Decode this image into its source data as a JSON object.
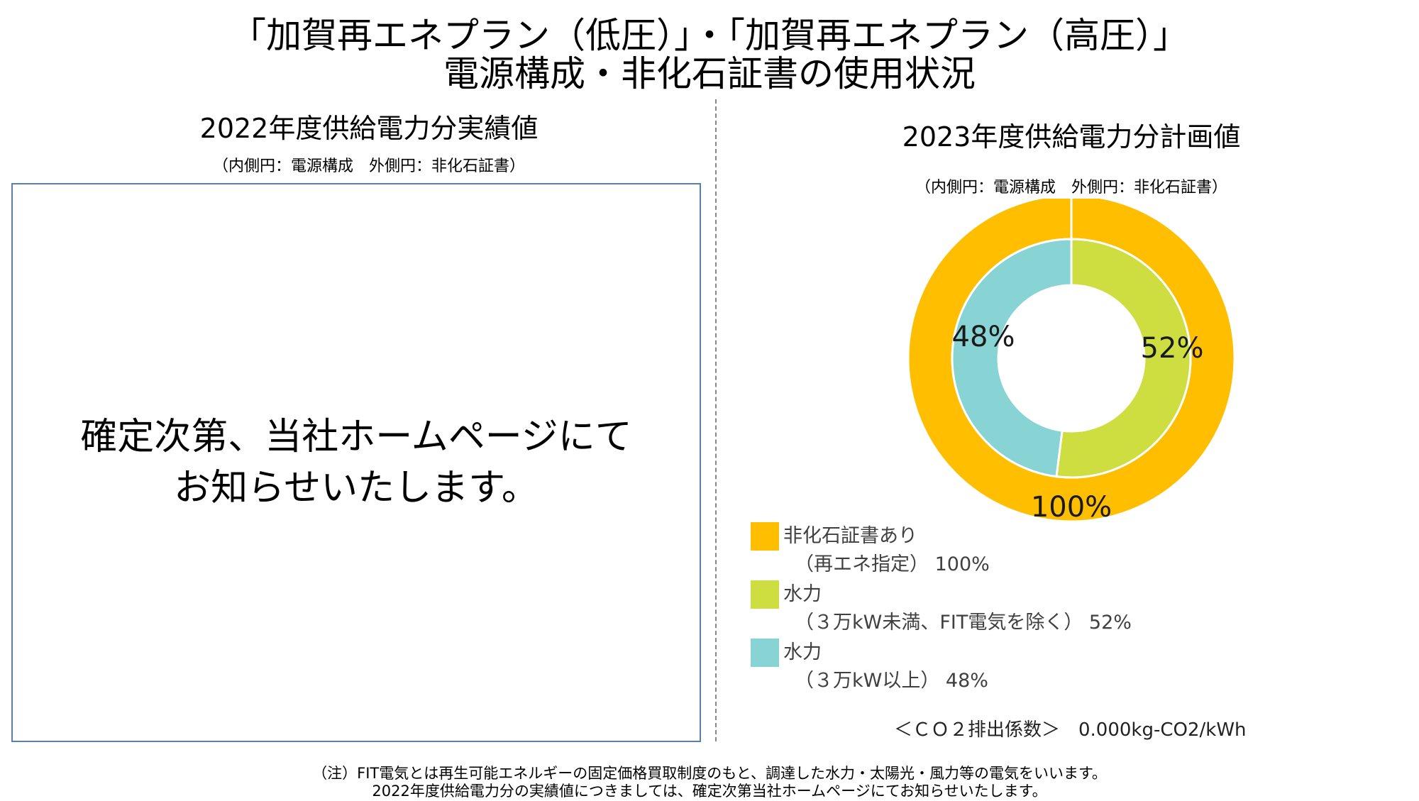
{
  "header": {
    "title_line1": "「加賀再エネプラン（低圧）」・「加賀再エネプラン（高圧）」",
    "title_line2": "電源構成・非化石証書の使用状況"
  },
  "left": {
    "title": "2022年度供給電力分実績値",
    "subtitle": "（内側円：電源構成　外側円：非化石証書）",
    "message_line1": "確定次第、当社ホームページにて",
    "message_line2": "お知らせいたします。"
  },
  "right": {
    "title": "2023年度供給電力分計画値",
    "subtitle": "（内側円：電源構成　外側円：非化石証書）"
  },
  "chart_data": {
    "type": "pie",
    "title": "2023年度供給電力分計画値",
    "rings": [
      {
        "ring": "outer",
        "slices": [
          {
            "label": "非化石証書あり（再エネ指定）",
            "value": 100,
            "label_text": "100%",
            "color": "#FFBE00"
          }
        ]
      },
      {
        "ring": "inner",
        "slices": [
          {
            "label": "水力（３万kW未満、FIT電気を除く）",
            "value": 52,
            "label_text": "52%",
            "color": "#CEDD3F"
          },
          {
            "label": "水力（３万kW以上）",
            "value": 48,
            "label_text": "48%",
            "color": "#88D3D3"
          }
        ]
      }
    ],
    "legend": [
      {
        "line1": "非化石証書あり",
        "line2": "（再エネ指定） 100%",
        "color": "#FFBE00"
      },
      {
        "line1": "水力",
        "line2": "（３万kW未満、FIT電気を除く） 52%",
        "color": "#CEDD3F"
      },
      {
        "line1": "水力",
        "line2": "（３万kW以上） 48%",
        "color": "#88D3D3"
      }
    ],
    "legend_position": "bottom-left"
  },
  "co2": "＜ＣＯ２排出係数＞　0.000kg-CO2/kWh",
  "notes": {
    "line1": "（注）FIT電気とは再生可能エネルギーの固定価格買取制度のもと、調達した水力・太陽光・風力等の電気をいいます。",
    "line2": "2022年度供給電力分の実績値につきましては、確定次第当社ホームページにてお知らせいたします。"
  }
}
